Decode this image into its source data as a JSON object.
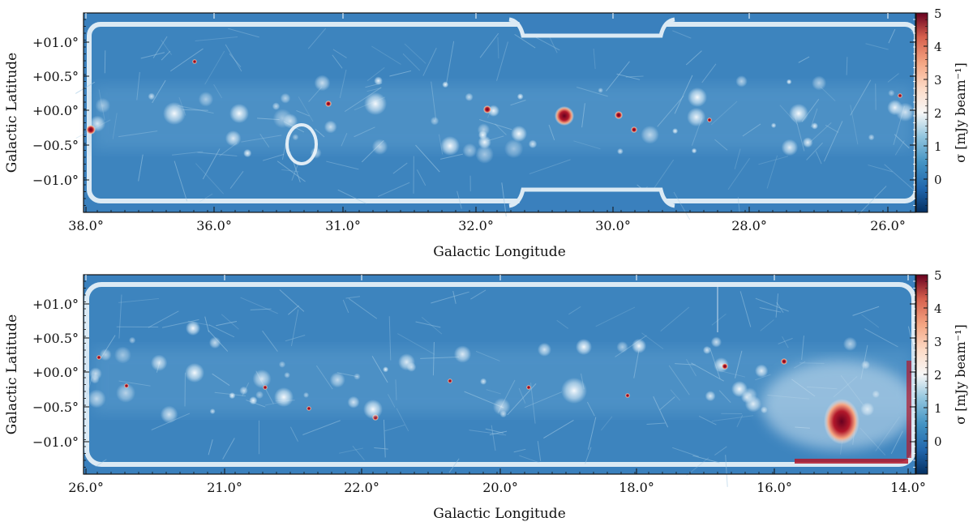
{
  "colors": {
    "field_base": "#3d84be",
    "edge": "#dceaf4",
    "hot": "#b2182b",
    "warm": "#f4a582",
    "offmap": "#3a80bd"
  },
  "chart_data": [
    {
      "type": "heatmap",
      "panel": "top",
      "xlabel": "Galactic Longitude",
      "ylabel": "Galactic Latitude",
      "x_tick_labels": [
        "38.0°",
        "36.0°",
        "31.0°",
        "32.0°",
        "30.0°",
        "28.0°",
        "26.0°"
      ],
      "y_tick_labels": [
        "+01.0°",
        "+00.5°",
        "+00.0°",
        "−00.5°",
        "−01.0°"
      ],
      "colorbar": {
        "label": "σ [mJy beam⁻¹]",
        "ticks": [
          "5",
          "4",
          "3",
          "2",
          "1",
          "0"
        ],
        "range": [
          -1,
          5
        ],
        "colormap": "RdBu_r"
      }
    },
    {
      "type": "heatmap",
      "panel": "bottom",
      "xlabel": "Galactic Longitude",
      "ylabel": "Galactic Latitude",
      "x_tick_labels": [
        "26.0°",
        "21.0°",
        "22.0°",
        "20.0°",
        "18.0°",
        "16.0°",
        "14.0°"
      ],
      "y_tick_labels": [
        "+01.0°",
        "+00.5°",
        "+00.0°",
        "−00.5°",
        "−01.0°"
      ],
      "colorbar": {
        "label": "σ [mJy beam⁻¹]",
        "ticks": [
          "5",
          "4",
          "3",
          "2",
          "1",
          "0"
        ],
        "range": [
          -1,
          5
        ],
        "colormap": "RdBu_r"
      }
    }
  ]
}
